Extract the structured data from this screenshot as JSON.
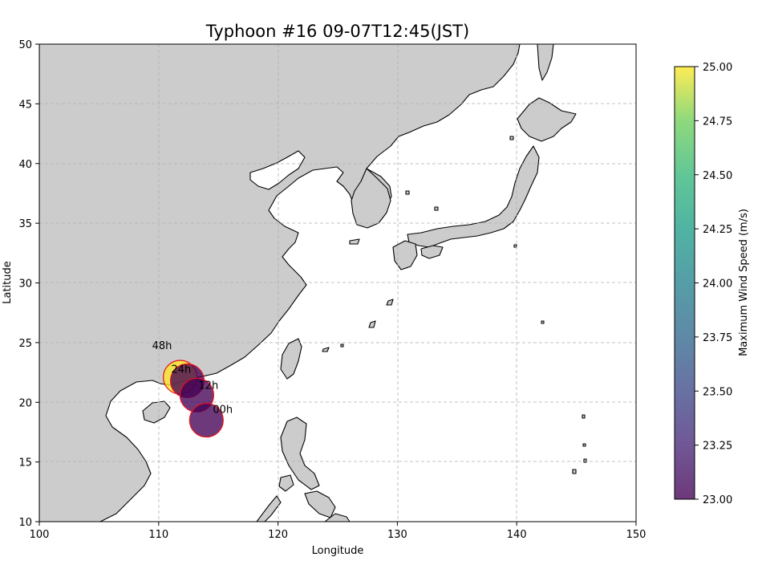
{
  "chart_data": {
    "type": "scatter",
    "title": "Typhoon #16 09-07T12:45(JST)",
    "xlabel": "Longitude",
    "ylabel": "Latitude",
    "xlim": [
      100,
      150
    ],
    "ylim": [
      10,
      50
    ],
    "xticks": [
      100,
      110,
      120,
      130,
      140,
      150
    ],
    "yticks": [
      10,
      15,
      20,
      25,
      30,
      35,
      40,
      45,
      50
    ],
    "grid": true,
    "basemap": "East Asia coastlines (land grey, sea white)",
    "points": [
      {
        "label": "00h",
        "lon": 114.0,
        "lat": 18.5,
        "max_wind_speed": 23.0
      },
      {
        "label": "12h",
        "lon": 113.2,
        "lat": 20.6,
        "max_wind_speed": 23.0
      },
      {
        "label": "24h",
        "lon": 112.4,
        "lat": 21.8,
        "max_wind_speed": 23.0
      },
      {
        "label": "48h",
        "lon": 111.8,
        "lat": 22.1,
        "max_wind_speed": 25.0
      }
    ],
    "colorbar": {
      "label": "Maximum Wind Speed (m/s)",
      "colormap": "viridis",
      "range": [
        23.0,
        25.0
      ],
      "ticks": [
        "23.00",
        "23.25",
        "23.50",
        "23.75",
        "24.00",
        "24.25",
        "24.50",
        "24.75",
        "25.00"
      ]
    },
    "colors": {
      "land": "#cccccc",
      "sea": "#ffffff",
      "marker_edge": "#e8101a",
      "grid": "#b0b0b0"
    }
  }
}
